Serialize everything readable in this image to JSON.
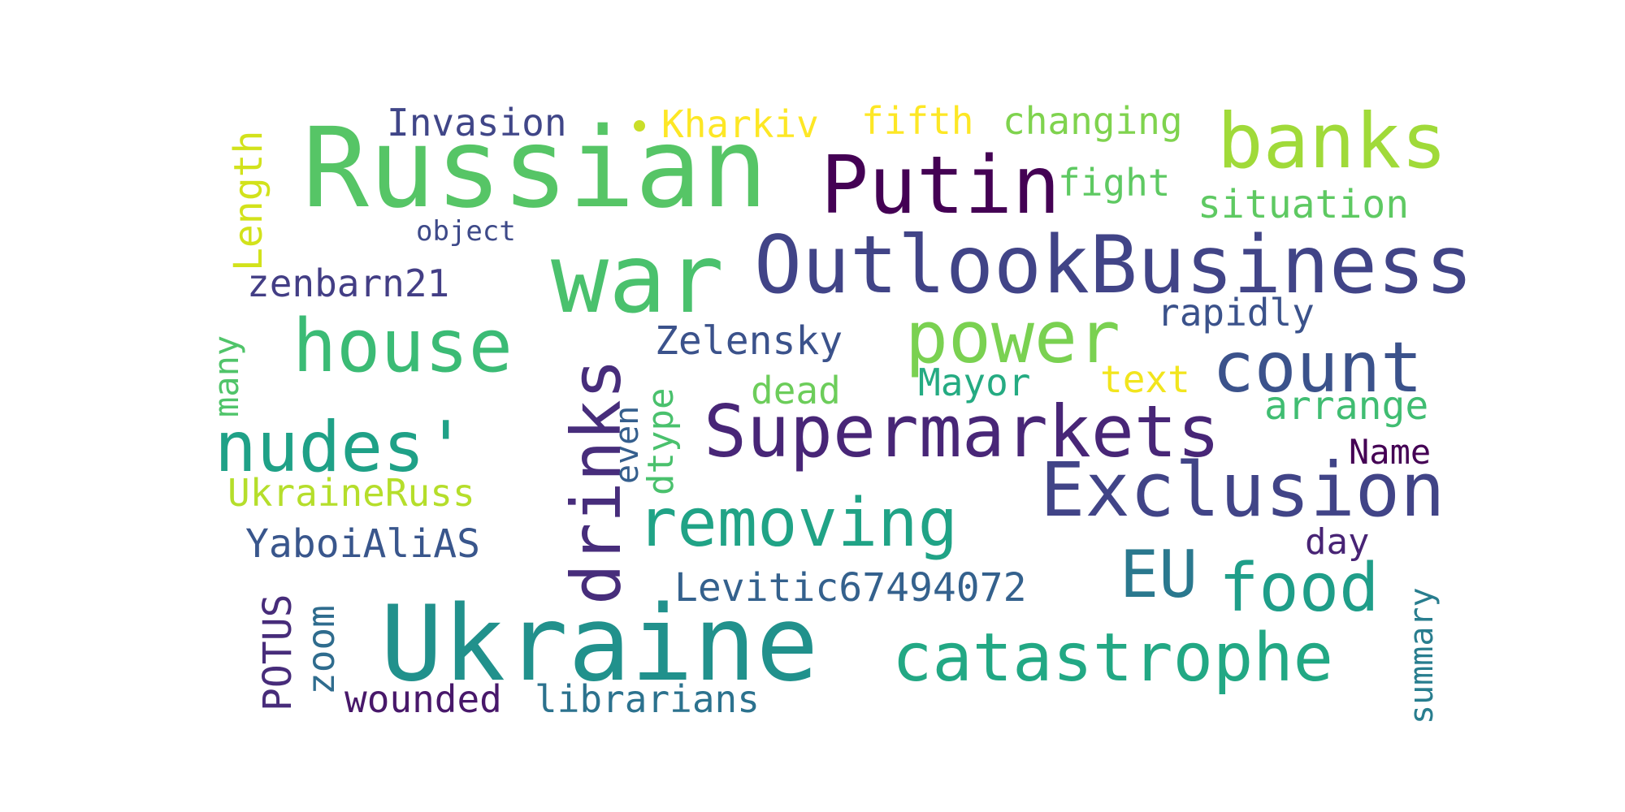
{
  "wordcloud": {
    "background": "#ffffff",
    "words": [
      {
        "key": "russian",
        "text": "Russian",
        "color": "#56c566"
      },
      {
        "key": "ukraine",
        "text": "Ukraine",
        "color": "#21918c"
      },
      {
        "key": "war",
        "text": "war",
        "color": "#4ac16d"
      },
      {
        "key": "outlook",
        "text": "OutlookBusiness",
        "color": "#414487"
      },
      {
        "key": "putin",
        "text": "Putin",
        "color": "#440154"
      },
      {
        "key": "banks",
        "text": "banks",
        "color": "#a0da39"
      },
      {
        "key": "supermarkets",
        "text": "Supermarkets",
        "color": "#482677"
      },
      {
        "key": "exclusion",
        "text": "Exclusion",
        "color": "#414487"
      },
      {
        "key": "house",
        "text": "house",
        "color": "#3bbb75"
      },
      {
        "key": "nudes",
        "text": "nudes'",
        "color": "#1fa187"
      },
      {
        "key": "power",
        "text": "power",
        "color": "#7ad151"
      },
      {
        "key": "count",
        "text": "count",
        "color": "#3b528b"
      },
      {
        "key": "removing",
        "text": "removing",
        "color": "#20a386"
      },
      {
        "key": "catastrophe",
        "text": "catastrophe",
        "color": "#22a884"
      },
      {
        "key": "food",
        "text": "food",
        "color": "#1f9e89"
      },
      {
        "key": "eu",
        "text": "EU",
        "color": "#2a788e"
      },
      {
        "key": "drinks",
        "text": "drinks",
        "color": "#472d7b"
      },
      {
        "key": "invasion",
        "text": "Invasion",
        "color": "#404688"
      },
      {
        "key": "kharkiv",
        "text": "Kharkiv",
        "color": "#fde725"
      },
      {
        "key": "fifth",
        "text": "fifth",
        "color": "#fde725"
      },
      {
        "key": "changing",
        "text": "changing",
        "color": "#7fd34e"
      },
      {
        "key": "fight",
        "text": "fight",
        "color": "#5ec962"
      },
      {
        "key": "situation",
        "text": "situation",
        "color": "#5ec962"
      },
      {
        "key": "object",
        "text": "object",
        "color": "#3e4a89"
      },
      {
        "key": "zenbarn",
        "text": "zenbarn21",
        "color": "#433e85"
      },
      {
        "key": "rapidly",
        "text": "rapidly",
        "color": "#3b528b"
      },
      {
        "key": "zelensky",
        "text": "Zelensky",
        "color": "#3b528b"
      },
      {
        "key": "dead",
        "text": "dead",
        "color": "#6ccd5a"
      },
      {
        "key": "mayor",
        "text": "Mayor",
        "color": "#25ab82"
      },
      {
        "key": "text",
        "text": "text",
        "color": "#f2e51d"
      },
      {
        "key": "arrange",
        "text": "arrange",
        "color": "#40bd72"
      },
      {
        "key": "name",
        "text": "Name",
        "color": "#440154"
      },
      {
        "key": "ukrruss",
        "text": "UkraineRuss",
        "color": "#b5de2b"
      },
      {
        "key": "yaboi",
        "text": "YaboiAliAS",
        "color": "#39568c"
      },
      {
        "key": "day",
        "text": "day",
        "color": "#482475"
      },
      {
        "key": "levitic",
        "text": "Levitic67494072",
        "color": "#34618d"
      },
      {
        "key": "wounded",
        "text": "wounded",
        "color": "#48186a"
      },
      {
        "key": "librarians",
        "text": "librarians",
        "color": "#2c728e"
      },
      {
        "key": "length",
        "text": "Length",
        "color": "#d2e21b",
        "vertical": true
      },
      {
        "key": "many",
        "text": "many",
        "color": "#50c46a",
        "vertical": true
      },
      {
        "key": "even",
        "text": "even",
        "color": "#355f8d",
        "vertical": true
      },
      {
        "key": "dtype",
        "text": "dtype",
        "color": "#4ac16d",
        "vertical": true
      },
      {
        "key": "potus",
        "text": "POTUS",
        "color": "#472c7a",
        "vertical": true
      },
      {
        "key": "zoom",
        "text": "zoom",
        "color": "#2f6c8e",
        "vertical": true
      },
      {
        "key": "summary",
        "text": "summary",
        "color": "#287d8e",
        "vertical": true
      }
    ]
  }
}
